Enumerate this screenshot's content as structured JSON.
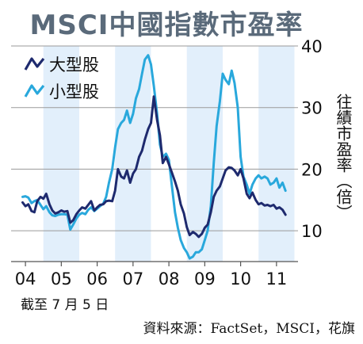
{
  "title": "MSCI中國指數市盈率",
  "footnote": "截至 7 月 5 日",
  "source": "資料來源：FactSet，MSCI，花旗",
  "chart_data": {
    "type": "line",
    "ylabel": "往績市盈率（倍）",
    "ylim": [
      5,
      40
    ],
    "yticks": [
      "10",
      "20",
      "30",
      "40"
    ],
    "xticks": [
      "04",
      "05",
      "06",
      "07",
      "08",
      "09",
      "10",
      "11"
    ],
    "xlim": [
      2003.6,
      2011.6
    ],
    "shaded_years": [
      2004.5,
      2006.5,
      2008.5,
      2010.5
    ],
    "legend_position": "top-left",
    "grid": "horizontal",
    "series": [
      {
        "name": "大型股",
        "color": "#1e2a6e",
        "points": [
          [
            2003.92,
            14.6
          ],
          [
            2004.0,
            14.0
          ],
          [
            2004.08,
            14.3
          ],
          [
            2004.17,
            13.2
          ],
          [
            2004.25,
            13.0
          ],
          [
            2004.33,
            14.8
          ],
          [
            2004.42,
            15.5
          ],
          [
            2004.5,
            15.2
          ],
          [
            2004.58,
            16.0
          ],
          [
            2004.67,
            14.3
          ],
          [
            2004.75,
            13.3
          ],
          [
            2004.83,
            12.8
          ],
          [
            2004.92,
            13.0
          ],
          [
            2005.0,
            13.3
          ],
          [
            2005.08,
            13.1
          ],
          [
            2005.17,
            13.2
          ],
          [
            2005.25,
            11.3
          ],
          [
            2005.33,
            11.7
          ],
          [
            2005.42,
            12.7
          ],
          [
            2005.5,
            13.3
          ],
          [
            2005.58,
            13.8
          ],
          [
            2005.67,
            13.6
          ],
          [
            2005.75,
            14.2
          ],
          [
            2005.83,
            14.8
          ],
          [
            2005.92,
            13.3
          ],
          [
            2006.0,
            13.8
          ],
          [
            2006.08,
            14.2
          ],
          [
            2006.17,
            14.3
          ],
          [
            2006.25,
            14.8
          ],
          [
            2006.33,
            14.9
          ],
          [
            2006.42,
            14.8
          ],
          [
            2006.5,
            16.5
          ],
          [
            2006.58,
            20.0
          ],
          [
            2006.67,
            18.8
          ],
          [
            2006.75,
            18.5
          ],
          [
            2006.83,
            19.8
          ],
          [
            2006.92,
            17.8
          ],
          [
            2007.0,
            19.3
          ],
          [
            2007.08,
            20.0
          ],
          [
            2007.17,
            22.0
          ],
          [
            2007.25,
            23.0
          ],
          [
            2007.33,
            24.8
          ],
          [
            2007.42,
            26.5
          ],
          [
            2007.5,
            27.5
          ],
          [
            2007.58,
            31.8
          ],
          [
            2007.67,
            28.0
          ],
          [
            2007.75,
            25.5
          ],
          [
            2007.83,
            21.0
          ],
          [
            2007.92,
            22.0
          ],
          [
            2008.0,
            20.8
          ],
          [
            2008.08,
            19.5
          ],
          [
            2008.17,
            18.0
          ],
          [
            2008.25,
            16.5
          ],
          [
            2008.33,
            14.3
          ],
          [
            2008.42,
            12.8
          ],
          [
            2008.5,
            10.6
          ],
          [
            2008.58,
            9.3
          ],
          [
            2008.67,
            9.8
          ],
          [
            2008.75,
            9.5
          ],
          [
            2008.83,
            9.0
          ],
          [
            2008.92,
            9.5
          ],
          [
            2009.0,
            10.5
          ],
          [
            2009.08,
            11.0
          ],
          [
            2009.17,
            13.0
          ],
          [
            2009.25,
            15.5
          ],
          [
            2009.33,
            16.5
          ],
          [
            2009.42,
            17.2
          ],
          [
            2009.5,
            18.5
          ],
          [
            2009.58,
            19.8
          ],
          [
            2009.67,
            20.3
          ],
          [
            2009.75,
            20.2
          ],
          [
            2009.83,
            19.8
          ],
          [
            2009.92,
            19.0
          ],
          [
            2010.0,
            20.0
          ],
          [
            2010.08,
            18.5
          ],
          [
            2010.17,
            16.0
          ],
          [
            2010.25,
            15.3
          ],
          [
            2010.33,
            16.2
          ],
          [
            2010.42,
            15.0
          ],
          [
            2010.5,
            14.3
          ],
          [
            2010.58,
            14.5
          ],
          [
            2010.67,
            14.1
          ],
          [
            2010.75,
            14.2
          ],
          [
            2010.83,
            14.0
          ],
          [
            2010.92,
            14.2
          ],
          [
            2011.0,
            13.6
          ],
          [
            2011.08,
            13.8
          ],
          [
            2011.17,
            13.4
          ],
          [
            2011.25,
            12.6
          ]
        ]
      },
      {
        "name": "小型股",
        "color": "#29a8dc",
        "points": [
          [
            2003.92,
            15.5
          ],
          [
            2004.0,
            15.6
          ],
          [
            2004.08,
            15.4
          ],
          [
            2004.17,
            14.5
          ],
          [
            2004.25,
            14.8
          ],
          [
            2004.33,
            15.0
          ],
          [
            2004.42,
            14.2
          ],
          [
            2004.5,
            13.5
          ],
          [
            2004.58,
            14.0
          ],
          [
            2004.67,
            13.0
          ],
          [
            2004.75,
            12.5
          ],
          [
            2004.83,
            12.4
          ],
          [
            2004.92,
            12.6
          ],
          [
            2005.0,
            12.7
          ],
          [
            2005.08,
            12.7
          ],
          [
            2005.17,
            12.6
          ],
          [
            2005.25,
            10.2
          ],
          [
            2005.33,
            11.0
          ],
          [
            2005.42,
            12.0
          ],
          [
            2005.5,
            12.6
          ],
          [
            2005.58,
            12.9
          ],
          [
            2005.67,
            12.7
          ],
          [
            2005.75,
            13.4
          ],
          [
            2005.83,
            13.8
          ],
          [
            2005.92,
            13.2
          ],
          [
            2006.0,
            13.6
          ],
          [
            2006.08,
            14.0
          ],
          [
            2006.17,
            14.4
          ],
          [
            2006.25,
            15.5
          ],
          [
            2006.33,
            17.8
          ],
          [
            2006.42,
            20.0
          ],
          [
            2006.5,
            23.5
          ],
          [
            2006.58,
            26.5
          ],
          [
            2006.67,
            27.5
          ],
          [
            2006.75,
            28.0
          ],
          [
            2006.83,
            29.5
          ],
          [
            2006.92,
            27.5
          ],
          [
            2007.0,
            29.0
          ],
          [
            2007.08,
            31.5
          ],
          [
            2007.17,
            33.0
          ],
          [
            2007.25,
            35.5
          ],
          [
            2007.33,
            37.8
          ],
          [
            2007.42,
            38.5
          ],
          [
            2007.5,
            37.0
          ],
          [
            2007.58,
            33.5
          ],
          [
            2007.67,
            29.0
          ],
          [
            2007.75,
            24.0
          ],
          [
            2007.83,
            22.0
          ],
          [
            2007.92,
            22.5
          ],
          [
            2008.0,
            21.5
          ],
          [
            2008.08,
            17.5
          ],
          [
            2008.17,
            13.0
          ],
          [
            2008.25,
            10.5
          ],
          [
            2008.33,
            8.5
          ],
          [
            2008.42,
            7.2
          ],
          [
            2008.5,
            6.5
          ],
          [
            2008.58,
            5.5
          ],
          [
            2008.67,
            5.8
          ],
          [
            2008.75,
            6.5
          ],
          [
            2008.83,
            6.5
          ],
          [
            2008.92,
            7.0
          ],
          [
            2009.0,
            8.5
          ],
          [
            2009.08,
            10.0
          ],
          [
            2009.17,
            14.0
          ],
          [
            2009.25,
            21.0
          ],
          [
            2009.33,
            27.0
          ],
          [
            2009.42,
            31.0
          ],
          [
            2009.5,
            35.5
          ],
          [
            2009.58,
            34.5
          ],
          [
            2009.67,
            33.8
          ],
          [
            2009.75,
            36.0
          ],
          [
            2009.83,
            34.0
          ],
          [
            2009.92,
            30.0
          ],
          [
            2010.0,
            22.0
          ],
          [
            2010.08,
            18.8
          ],
          [
            2010.17,
            17.5
          ],
          [
            2010.25,
            16.0
          ],
          [
            2010.33,
            17.5
          ],
          [
            2010.42,
            18.5
          ],
          [
            2010.5,
            19.0
          ],
          [
            2010.58,
            18.5
          ],
          [
            2010.67,
            18.8
          ],
          [
            2010.75,
            18.5
          ],
          [
            2010.83,
            17.5
          ],
          [
            2010.92,
            17.8
          ],
          [
            2011.0,
            18.5
          ],
          [
            2011.08,
            17.0
          ],
          [
            2011.17,
            17.8
          ],
          [
            2011.25,
            16.5
          ]
        ]
      }
    ]
  }
}
